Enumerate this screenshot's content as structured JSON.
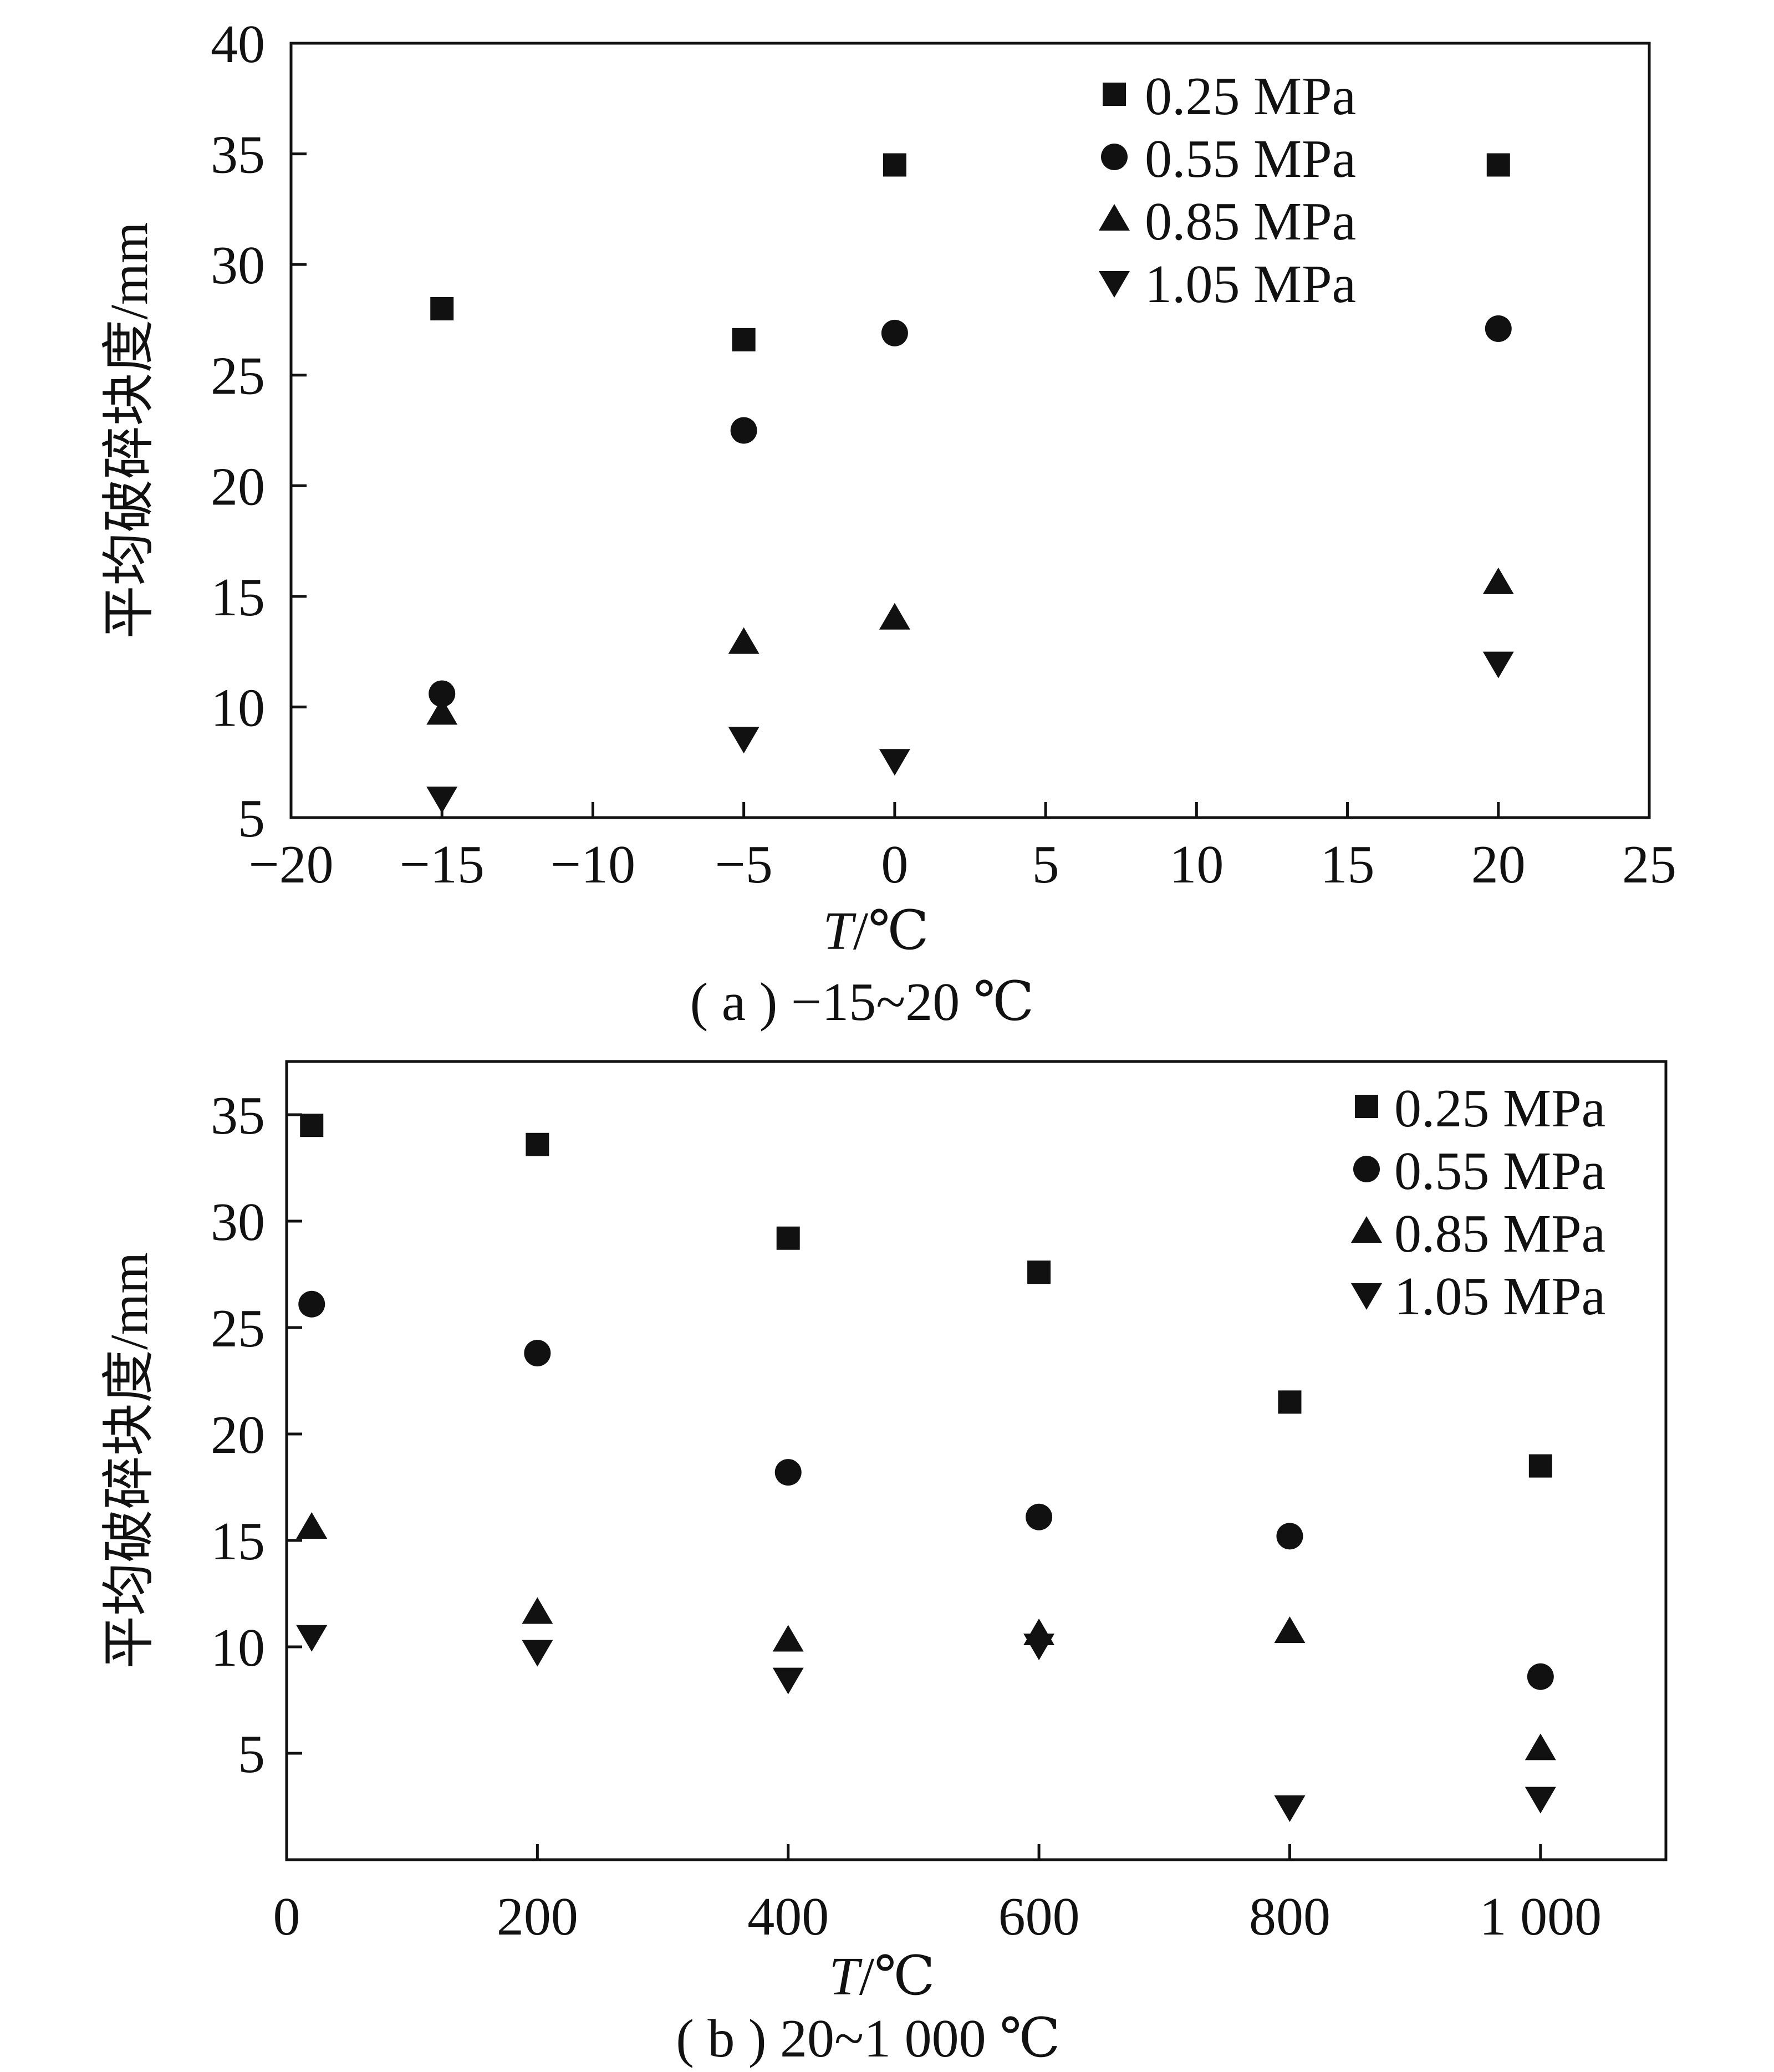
{
  "chart_data": [
    {
      "type": "scatter",
      "panel": "a",
      "caption": "( a )  −15~20 ℃",
      "xlabel_var": "T",
      "xlabel_unit": "/℃",
      "ylabel": "平均破碎块度/mm",
      "xlim": [
        -20,
        25
      ],
      "ylim": [
        5,
        40
      ],
      "xticks": [
        -20,
        -15,
        -10,
        -5,
        0,
        5,
        10,
        15,
        20,
        25
      ],
      "xtick_labels": [
        "−20",
        "−15",
        "−10",
        "−5",
        "0",
        "5",
        "10",
        "15",
        "20",
        "25"
      ],
      "yticks": [
        5,
        10,
        15,
        20,
        25,
        30,
        35,
        40
      ],
      "ytick_labels": [
        "5",
        "10",
        "15",
        "20",
        "25",
        "30",
        "35",
        "40"
      ],
      "grid": false,
      "legend": "top-right",
      "series": [
        {
          "name": "0.25 MPa",
          "marker": "square",
          "x": [
            -15,
            -5,
            0,
            20
          ],
          "y": [
            28.0,
            26.6,
            34.5,
            34.5
          ]
        },
        {
          "name": "0.55 MPa",
          "marker": "circle",
          "x": [
            -15,
            -5,
            0,
            20
          ],
          "y": [
            10.6,
            22.5,
            26.9,
            27.1
          ]
        },
        {
          "name": "0.85 MPa",
          "marker": "triangle-up",
          "x": [
            -15,
            -5,
            0,
            20
          ],
          "y": [
            9.7,
            12.9,
            14.0,
            15.6
          ]
        },
        {
          "name": "1.05 MPa",
          "marker": "triangle-down",
          "x": [
            -15,
            -5,
            0,
            20
          ],
          "y": [
            5.9,
            8.6,
            7.6,
            12.0
          ]
        }
      ]
    },
    {
      "type": "scatter",
      "panel": "b",
      "caption": "( b )  20~1 000 ℃",
      "xlabel_var": "T",
      "xlabel_unit": "/℃",
      "ylabel": "平均破碎块度/mm",
      "xlim": [
        0,
        1100
      ],
      "ylim": [
        0,
        37.5
      ],
      "xticks": [
        0,
        200,
        400,
        600,
        800,
        1000
      ],
      "xtick_labels": [
        "0",
        "200",
        "400",
        "600",
        "800",
        "1 000"
      ],
      "yticks": [
        5,
        10,
        15,
        20,
        25,
        30,
        35
      ],
      "ytick_labels": [
        "5",
        "10",
        "15",
        "20",
        "25",
        "30",
        "35"
      ],
      "grid": false,
      "legend": "top-right",
      "series": [
        {
          "name": "0.25 MPa",
          "marker": "square",
          "x": [
            20,
            200,
            400,
            600,
            800,
            1000
          ],
          "y": [
            34.5,
            33.6,
            29.2,
            27.6,
            21.5,
            18.5
          ]
        },
        {
          "name": "0.55 MPa",
          "marker": "circle",
          "x": [
            20,
            200,
            400,
            600,
            800,
            1000
          ],
          "y": [
            26.1,
            23.8,
            18.2,
            16.1,
            15.2,
            8.6
          ]
        },
        {
          "name": "0.85 MPa",
          "marker": "triangle-up",
          "x": [
            20,
            200,
            400,
            600,
            800,
            1000
          ],
          "y": [
            15.6,
            11.6,
            10.3,
            10.6,
            10.7,
            5.2
          ]
        },
        {
          "name": "1.05 MPa",
          "marker": "triangle-down",
          "x": [
            20,
            200,
            400,
            600,
            800,
            1000
          ],
          "y": [
            10.5,
            9.8,
            8.5,
            10.1,
            2.5,
            2.9
          ]
        }
      ]
    }
  ]
}
